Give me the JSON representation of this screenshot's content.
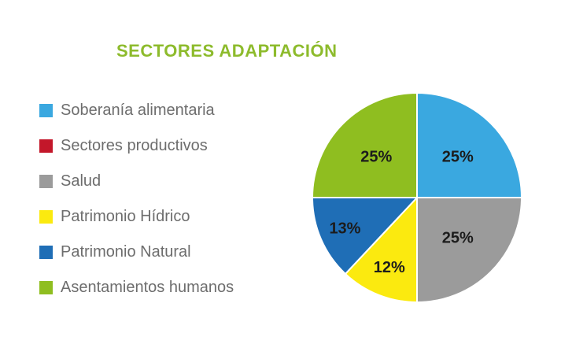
{
  "chart_data": {
    "type": "pie",
    "title": "SECTORES ADAPTACIÓN",
    "categories": [
      "Soberanía alimentaria",
      "Sectores productivos",
      "Salud",
      "Patrimonio Hídrico",
      "Patrimonio Natural",
      "Asentamientos humanos"
    ],
    "values": [
      25,
      0,
      25,
      12,
      13,
      25
    ],
    "labels": [
      "25%",
      "",
      "25%",
      "12%",
      "13%",
      "25%"
    ],
    "colors": [
      "#3aa8e0",
      "#c3172a",
      "#9b9b9b",
      "#fbea0f",
      "#1f6eb6",
      "#8fbe20"
    ],
    "legend_position": "left"
  }
}
